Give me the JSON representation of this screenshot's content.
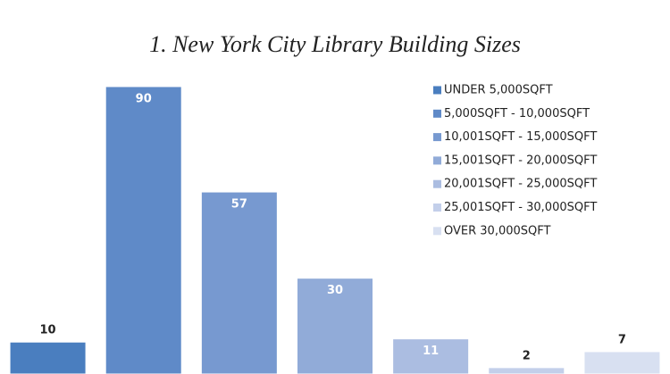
{
  "chart_data": {
    "type": "bar",
    "title": "1. New York City Library Building Sizes",
    "categories": [
      "UNDER 5,000SQFT",
      "5,000SQFT - 10,000SQFT",
      "10,001SQFT - 15,000SQFT",
      "15,001SQFT - 20,000SQFT",
      "20,001SQFT - 25,000SQFT",
      "25,001SQFT - 30,000SQFT",
      "OVER 30,000SQFT"
    ],
    "values": [
      10,
      90,
      57,
      30,
      11,
      2,
      7
    ],
    "colors": [
      "#4a7ebf",
      "#5f8ac8",
      "#7799d0",
      "#91abd8",
      "#abbde1",
      "#c3cfea",
      "#d8e0f1"
    ],
    "ylim": [
      0,
      90
    ],
    "legend": "top-right"
  }
}
